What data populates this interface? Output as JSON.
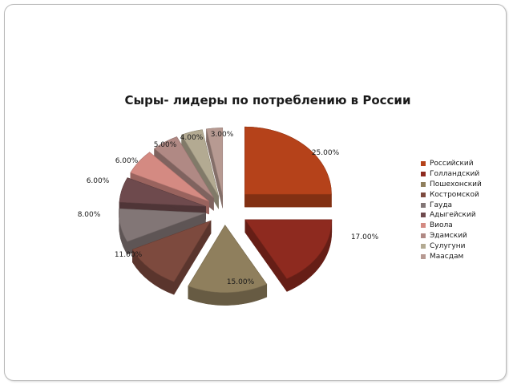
{
  "chart_data": {
    "type": "pie",
    "title": "Сыры- лидеры по потреблению в России",
    "legend_position": "right",
    "style": "3d-exploded",
    "slices": [
      {
        "name": "Российский",
        "value": 25,
        "label": "25.00%",
        "color": "#b5421a"
      },
      {
        "name": "Голландский",
        "value": 17,
        "label": "17.00%",
        "color": "#8e2a1f"
      },
      {
        "name": "Пошехонский",
        "value": 15,
        "label": "15.00%",
        "color": "#8f7f5d"
      },
      {
        "name": "Костромской",
        "value": 11,
        "label": "11.00%",
        "color": "#7d4a3e"
      },
      {
        "name": "Гауда",
        "value": 8,
        "label": "8.00%",
        "color": "#827676"
      },
      {
        "name": "Адыгейский",
        "value": 6,
        "label": "6.00%",
        "color": "#6e4a4d"
      },
      {
        "name": "Виола",
        "value": 6,
        "label": "6.00%",
        "color": "#d48a82"
      },
      {
        "name": "Эдамский",
        "value": 5,
        "label": "5.00%",
        "color": "#b08984"
      },
      {
        "name": "Сулугуни",
        "value": 4,
        "label": "4.00%",
        "color": "#b3aa92"
      },
      {
        "name": "Маасдам",
        "value": 3,
        "label": "3.00%",
        "color": "#b79a92"
      }
    ]
  }
}
